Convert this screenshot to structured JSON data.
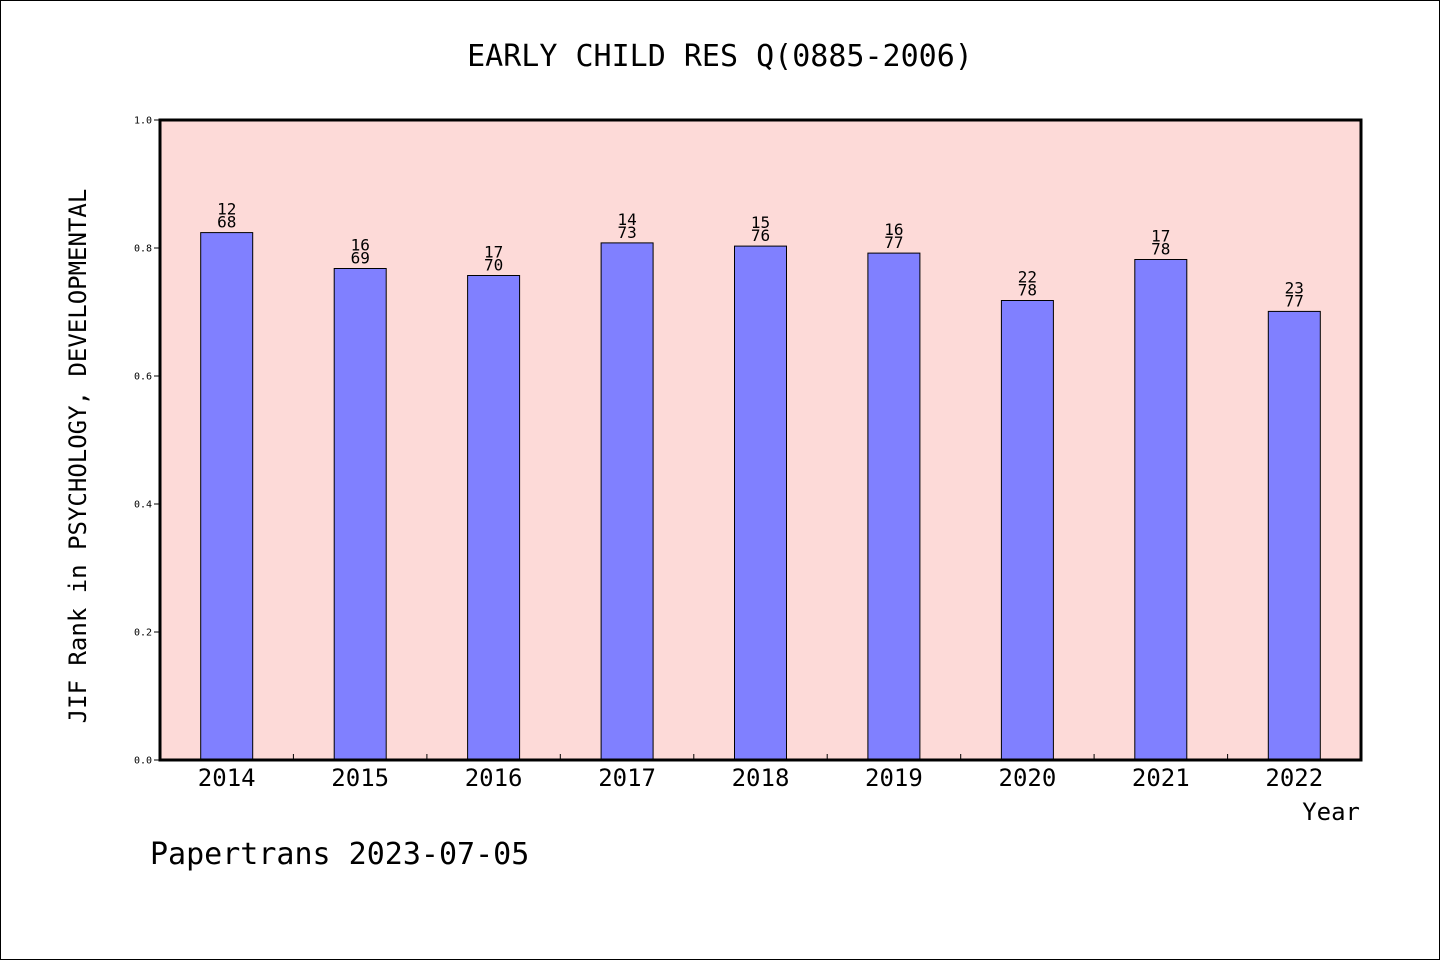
{
  "chart_data": {
    "type": "bar",
    "title": "EARLY CHILD RES Q(0885-2006)",
    "xlabel": "Year",
    "ylabel": "JIF Rank in PSYCHOLOGY, DEVELOPMENTAL",
    "categories": [
      "2014",
      "2015",
      "2016",
      "2017",
      "2018",
      "2019",
      "2020",
      "2021",
      "2022"
    ],
    "values": [
      0.824,
      0.768,
      0.757,
      0.808,
      0.803,
      0.792,
      0.718,
      0.782,
      0.701
    ],
    "rank_labels": [
      [
        "12",
        "68"
      ],
      [
        "16",
        "69"
      ],
      [
        "17",
        "70"
      ],
      [
        "14",
        "73"
      ],
      [
        "15",
        "76"
      ],
      [
        "16",
        "77"
      ],
      [
        "22",
        "78"
      ],
      [
        "17",
        "78"
      ],
      [
        "23",
        "77"
      ]
    ],
    "ylim": [
      0,
      1.0
    ],
    "yticks": [
      "0.0",
      "0.2",
      "0.4",
      "0.6",
      "0.8",
      "1.0"
    ],
    "grid": false,
    "colors": {
      "plot_background": "#fddad8",
      "bar_fill": "#8080ff",
      "bar_stroke": "#000000"
    }
  },
  "footer": {
    "watermark": "Papertrans 2023-07-05"
  }
}
